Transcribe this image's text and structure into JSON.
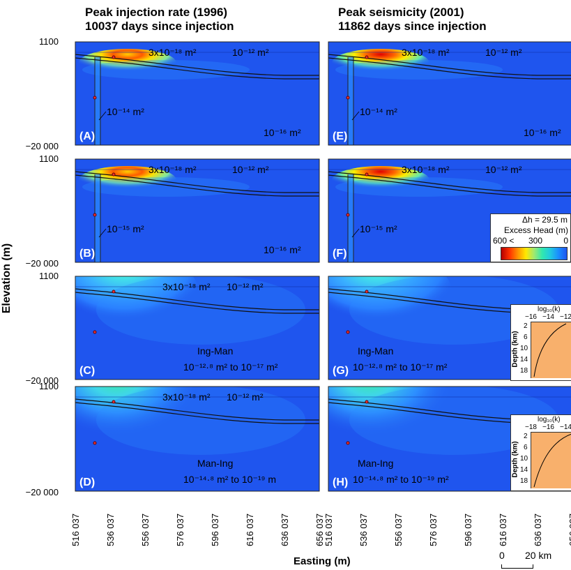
{
  "titles": {
    "left_line1": "Peak injection rate (1996)",
    "left_line2": "10037 days since injection",
    "right_line1": "Peak seismicity (2001)",
    "right_line2": "11862 days since injection"
  },
  "axes": {
    "ylabel": "Elevation (m)",
    "xlabel": "Easting (m)",
    "y_top": "1100",
    "y_bottom": "−20 000",
    "x_ticks": [
      "516 037",
      "536 037",
      "556 037",
      "576 037",
      "596 037",
      "616 037",
      "636 037",
      "656 037"
    ]
  },
  "panels": [
    {
      "id": "A",
      "label": "(A)",
      "caprock": "3x10⁻¹⁸ m²",
      "top": "10⁻¹² m²",
      "fault": "10⁻¹⁴ m²",
      "base": "10⁻¹⁶ m²"
    },
    {
      "id": "B",
      "label": "(B)",
      "caprock": "3x10⁻¹⁸ m²",
      "top": "10⁻¹² m²",
      "fault": "10⁻¹⁵ m²",
      "base": "10⁻¹⁶ m²"
    },
    {
      "id": "C",
      "label": "(C)",
      "caprock": "3x10⁻¹⁸ m²",
      "top": "10⁻¹² m²",
      "model": "Ing-Man",
      "range": "10⁻¹²·⁸ m² to 10⁻¹⁷ m²"
    },
    {
      "id": "D",
      "label": "(D)",
      "caprock": "3x10⁻¹⁸ m²",
      "top": "10⁻¹² m²",
      "model": "Man-Ing",
      "range": "10⁻¹⁴·⁸ m² to 10⁻¹⁹ m"
    },
    {
      "id": "E",
      "label": "(E)",
      "caprock": "3x10⁻¹⁸ m²",
      "top": "10⁻¹² m²",
      "fault": "10⁻¹⁴ m²",
      "base": "10⁻¹⁶ m²"
    },
    {
      "id": "F",
      "label": "(F)",
      "caprock": "3x10⁻¹⁸ m²",
      "top": "10⁻¹² m²",
      "fault": "10⁻¹⁵ m²",
      "base": "10⁻¹⁶ m²"
    },
    {
      "id": "G",
      "label": "(G)",
      "model": "Ing-Man",
      "range": "10⁻¹²·⁸ m² to 10⁻¹⁷ m²"
    },
    {
      "id": "H",
      "label": "(H)",
      "model": "Man-Ing",
      "range": "10⁻¹⁴·⁸ m² to 10⁻¹⁹ m²"
    }
  ],
  "legend": {
    "dh": "Δh = 29.5 m",
    "title": "Excess Head (m)",
    "t600": "600 <",
    "t300": "300",
    "t0": "0",
    "colors": [
      "#b30000",
      "#ff4500",
      "#ffa500",
      "#ffee00",
      "#9be36b",
      "#34e0a0",
      "#18c8d8",
      "#1aa0f0",
      "#1a6fff",
      "#1f55ee"
    ]
  },
  "insets": [
    {
      "title": "log₁₀(k)",
      "xticks": [
        "−16",
        "−14",
        "−12"
      ],
      "ylabel": "Depth (km)",
      "yticks": [
        "2",
        "6",
        "10",
        "14",
        "18"
      ]
    },
    {
      "title": "log₁₀(k)",
      "xticks": [
        "−18",
        "−16",
        "−14"
      ],
      "ylabel": "Depth (km)",
      "yticks": [
        "2",
        "6",
        "10",
        "14",
        "18"
      ]
    }
  ],
  "scalebar": {
    "zero": "0",
    "label": "20 km"
  }
}
